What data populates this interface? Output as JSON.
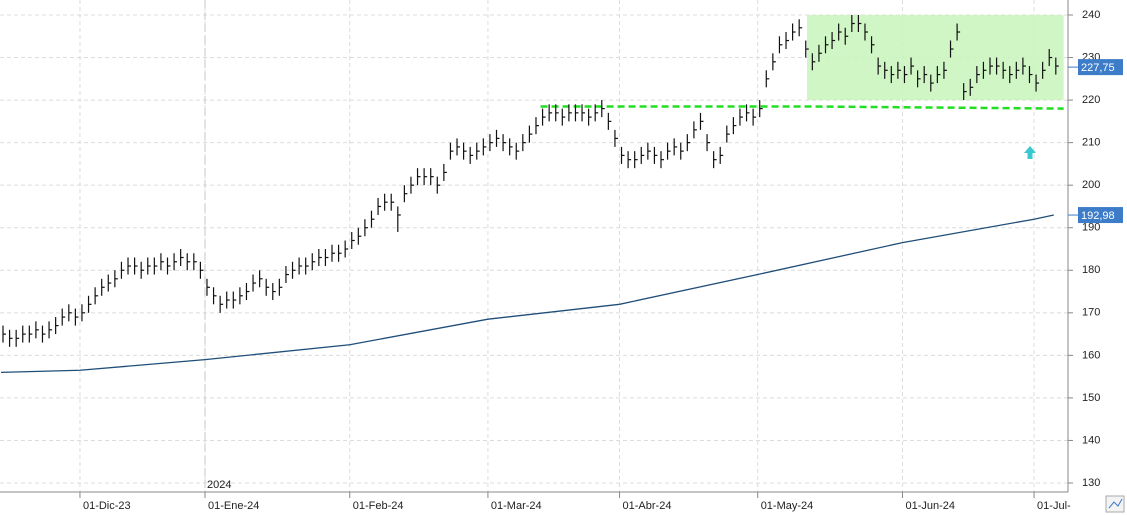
{
  "chart_data": {
    "type": "ohlc",
    "categories": [
      null,
      null,
      null,
      null,
      null,
      null,
      null,
      null,
      null,
      null,
      null,
      null,
      "01-Dic-23",
      null,
      null,
      null,
      null,
      null,
      null,
      null,
      null,
      null,
      null,
      null,
      null,
      null,
      null,
      null,
      null,
      null,
      null,
      "01-Ene-24",
      null,
      null,
      null,
      null,
      null,
      null,
      null,
      null,
      null,
      null,
      null,
      null,
      null,
      null,
      null,
      null,
      null,
      null,
      null,
      null,
      null,
      "01-Feb-24",
      null,
      null,
      null,
      null,
      null,
      null,
      null,
      null,
      null,
      null,
      null,
      null,
      null,
      null,
      null,
      null,
      null,
      null,
      null,
      null,
      "01-Mar-24",
      null,
      null,
      null,
      null,
      null,
      null,
      null,
      null,
      null,
      null,
      null,
      null,
      null,
      null,
      null,
      null,
      null,
      null,
      null,
      "01-Abr-24",
      null,
      null,
      null,
      null,
      null,
      null,
      null,
      null,
      null,
      null,
      null,
      null,
      null,
      null,
      null,
      null,
      null,
      null,
      null,
      null,
      "01-May-24",
      null,
      null,
      null,
      null,
      null,
      null,
      null,
      null,
      null,
      null,
      null,
      null,
      null,
      null,
      null,
      null,
      null,
      null,
      null,
      null,
      null,
      "01-Jun-24",
      null,
      null,
      null,
      null,
      null,
      null,
      null,
      null,
      null,
      null,
      null,
      null,
      null,
      null,
      null,
      null,
      null,
      null,
      null,
      "01-Jul-",
      null,
      null,
      null
    ],
    "high": [
      167,
      166,
      166,
      167,
      167,
      168,
      167,
      168,
      169,
      171,
      172,
      171,
      172,
      174,
      176,
      178,
      179,
      180,
      182,
      183,
      183,
      182,
      183,
      183,
      184,
      183,
      184,
      185,
      184,
      184,
      182,
      178,
      176,
      174,
      175,
      175,
      176,
      177,
      179,
      180,
      178,
      177,
      178,
      181,
      182,
      183,
      183,
      184,
      185,
      185,
      186,
      186,
      187,
      189,
      190,
      192,
      194,
      197,
      198,
      198,
      195,
      200,
      202,
      204,
      204,
      204,
      202,
      205,
      210,
      211,
      210,
      209,
      210,
      211,
      212,
      213,
      212,
      211,
      210,
      212,
      214,
      216,
      218,
      219,
      219,
      218,
      219,
      219,
      219,
      218,
      219,
      220,
      217,
      213,
      209,
      208,
      208,
      209,
      210,
      209,
      208,
      210,
      211,
      210,
      212,
      215,
      217,
      212,
      208,
      209,
      214,
      216,
      218,
      219,
      218,
      220,
      227,
      231,
      235,
      236,
      238,
      239,
      234,
      231,
      233,
      235,
      236,
      238,
      237,
      240,
      240,
      238,
      235,
      230,
      229,
      228,
      229,
      228,
      230,
      227,
      228,
      226,
      228,
      229,
      234,
      238,
      224,
      225,
      228,
      229,
      230,
      230,
      229,
      228,
      229,
      230,
      228,
      226,
      229,
      232,
      230
    ],
    "low": [
      163,
      162,
      162,
      163,
      163,
      164,
      163,
      164,
      165,
      167,
      168,
      167,
      168,
      170,
      172,
      174,
      175,
      176,
      178,
      179,
      179,
      178,
      179,
      179,
      180,
      179,
      180,
      181,
      180,
      180,
      178,
      174,
      172,
      170,
      171,
      171,
      172,
      173,
      175,
      176,
      174,
      173,
      174,
      177,
      178,
      179,
      179,
      180,
      181,
      181,
      182,
      182,
      183,
      185,
      186,
      188,
      190,
      193,
      194,
      194,
      189,
      196,
      198,
      200,
      200,
      200,
      198,
      201,
      206,
      207,
      206,
      205,
      206,
      207,
      208,
      209,
      208,
      207,
      206,
      208,
      210,
      212,
      214,
      215,
      215,
      214,
      215,
      215,
      215,
      214,
      215,
      216,
      213,
      209,
      205,
      204,
      204,
      205,
      206,
      205,
      204,
      206,
      207,
      206,
      208,
      211,
      213,
      208,
      204,
      205,
      210,
      212,
      214,
      215,
      214,
      216,
      223,
      227,
      231,
      232,
      234,
      235,
      230,
      227,
      229,
      231,
      232,
      234,
      233,
      236,
      236,
      234,
      231,
      226,
      225,
      224,
      225,
      224,
      226,
      223,
      224,
      222,
      224,
      225,
      230,
      234,
      220,
      221,
      224,
      225,
      226,
      226,
      225,
      224,
      225,
      226,
      224,
      222,
      225,
      228,
      226
    ],
    "values": [
      165,
      164,
      164,
      165,
      165,
      166,
      165,
      166,
      167,
      169,
      170,
      169,
      170,
      172,
      174,
      176,
      177,
      178,
      180,
      181,
      181,
      180,
      181,
      181,
      182,
      181,
      182,
      183,
      182,
      182,
      180,
      176,
      174,
      172,
      173,
      173,
      174,
      175,
      177,
      178,
      176,
      175,
      176,
      179,
      180,
      181,
      181,
      182,
      183,
      183,
      184,
      184,
      185,
      187,
      188,
      190,
      192,
      195,
      196,
      196,
      193,
      198,
      200,
      202,
      202,
      202,
      200,
      203,
      208,
      209,
      208,
      207,
      208,
      209,
      210,
      211,
      210,
      209,
      208,
      210,
      212,
      214,
      216,
      217,
      217,
      216,
      217,
      217,
      217,
      216,
      217,
      218,
      215,
      211,
      207,
      206,
      206,
      207,
      208,
      207,
      206,
      208,
      209,
      208,
      210,
      213,
      215,
      210,
      206,
      207,
      212,
      214,
      216,
      217,
      216,
      218,
      225,
      229,
      233,
      234,
      236,
      237,
      232,
      229,
      231,
      233,
      234,
      236,
      235,
      238,
      238,
      236,
      233,
      228,
      227,
      226,
      227,
      226,
      228,
      225,
      226,
      224,
      226,
      227,
      232,
      236,
      222,
      223,
      226,
      227,
      228,
      228,
      227,
      226,
      227,
      228,
      226,
      224,
      227,
      230,
      228
    ],
    "color": "#111111",
    "ma": {
      "x": [
        0,
        12,
        31,
        53,
        74,
        94,
        115,
        137,
        157,
        160
      ],
      "values": [
        156,
        156.5,
        159,
        162.5,
        168.5,
        172,
        179,
        186.5,
        192,
        193
      ],
      "color": "#1f4e79"
    },
    "range_box": {
      "x": [
        122.5,
        161.5
      ],
      "y": [
        220,
        240
      ],
      "color": "#c8f5bc"
    },
    "level_line": {
      "x": [
        82,
        123,
        161.5
      ],
      "values": [
        218.5,
        218.5,
        218
      ],
      "color": "#22dd22"
    },
    "year_marker": {
      "x": 31,
      "label": "2024"
    },
    "last_labels": [
      {
        "value": 227.75,
        "label": "227,75"
      },
      {
        "value": 192.98,
        "label": "192,98"
      }
    ],
    "ylim": [
      130,
      240
    ],
    "yticks": [
      130,
      140,
      150,
      160,
      170,
      180,
      190,
      200,
      210,
      220,
      230,
      240
    ],
    "grid": true
  }
}
